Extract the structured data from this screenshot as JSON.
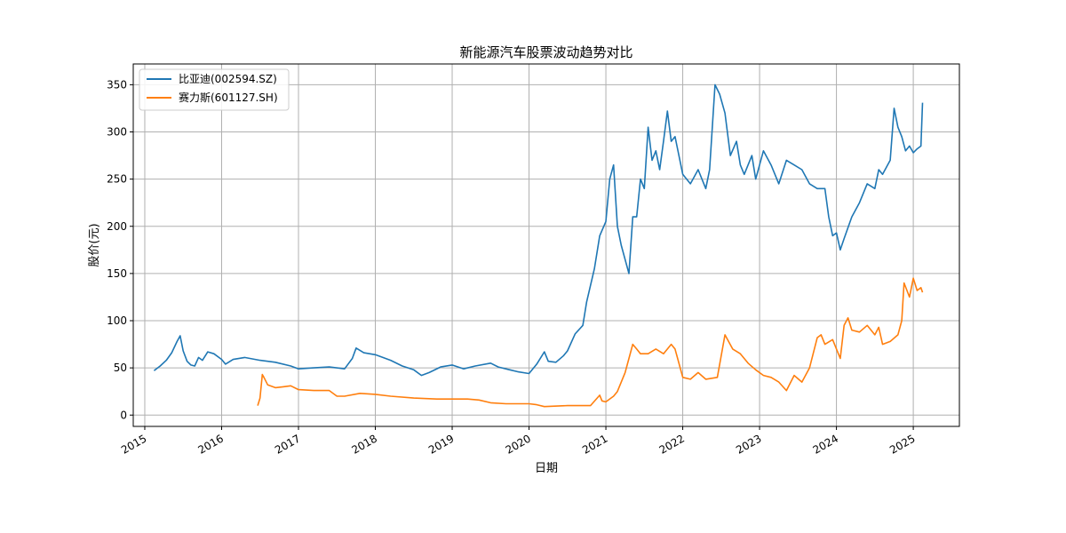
{
  "chart_data": {
    "type": "line",
    "title": "新能源汽车股票波动趋势对比",
    "xlabel": "日期",
    "ylabel": "股价(元)",
    "xlim": [
      2014.85,
      2025.6
    ],
    "ylim": [
      -12,
      372
    ],
    "grid": true,
    "legend_position": "top-left",
    "x_ticks": [
      {
        "value": 2015,
        "label": "2015"
      },
      {
        "value": 2016,
        "label": "2016"
      },
      {
        "value": 2017,
        "label": "2017"
      },
      {
        "value": 2018,
        "label": "2018"
      },
      {
        "value": 2019,
        "label": "2019"
      },
      {
        "value": 2020,
        "label": "2020"
      },
      {
        "value": 2021,
        "label": "2021"
      },
      {
        "value": 2022,
        "label": "2022"
      },
      {
        "value": 2023,
        "label": "2023"
      },
      {
        "value": 2024,
        "label": "2024"
      },
      {
        "value": 2025,
        "label": "2025"
      }
    ],
    "y_ticks": [
      {
        "value": 0,
        "label": "0"
      },
      {
        "value": 50,
        "label": "50"
      },
      {
        "value": 100,
        "label": "100"
      },
      {
        "value": 150,
        "label": "150"
      },
      {
        "value": 200,
        "label": "200"
      },
      {
        "value": 250,
        "label": "250"
      },
      {
        "value": 300,
        "label": "300"
      },
      {
        "value": 350,
        "label": "350"
      }
    ],
    "series": [
      {
        "name": "比亚迪(002594.SZ)",
        "color": "#1f77b4",
        "x": [
          2015.12,
          2015.2,
          2015.28,
          2015.35,
          2015.42,
          2015.46,
          2015.5,
          2015.55,
          2015.6,
          2015.65,
          2015.7,
          2015.75,
          2015.82,
          2015.9,
          2016.0,
          2016.05,
          2016.15,
          2016.3,
          2016.5,
          2016.7,
          2016.9,
          2017.0,
          2017.2,
          2017.4,
          2017.6,
          2017.7,
          2017.75,
          2017.85,
          2018.0,
          2018.2,
          2018.35,
          2018.5,
          2018.6,
          2018.7,
          2018.85,
          2019.0,
          2019.15,
          2019.3,
          2019.5,
          2019.6,
          2019.75,
          2019.85,
          2020.0,
          2020.1,
          2020.2,
          2020.25,
          2020.35,
          2020.45,
          2020.5,
          2020.6,
          2020.7,
          2020.75,
          2020.85,
          2020.92,
          2021.0,
          2021.05,
          2021.1,
          2021.15,
          2021.2,
          2021.3,
          2021.35,
          2021.4,
          2021.45,
          2021.5,
          2021.55,
          2021.6,
          2021.65,
          2021.7,
          2021.75,
          2021.8,
          2021.85,
          2021.9,
          2022.0,
          2022.1,
          2022.2,
          2022.3,
          2022.35,
          2022.42,
          2022.48,
          2022.55,
          2022.62,
          2022.7,
          2022.75,
          2022.8,
          2022.9,
          2022.95,
          2023.05,
          2023.15,
          2023.25,
          2023.35,
          2023.45,
          2023.55,
          2023.65,
          2023.75,
          2023.85,
          2023.9,
          2023.95,
          2024.0,
          2024.05,
          2024.1,
          2024.2,
          2024.3,
          2024.4,
          2024.5,
          2024.55,
          2024.6,
          2024.7,
          2024.75,
          2024.8,
          2024.85,
          2024.9,
          2024.95,
          2025.0,
          2025.05,
          2025.1,
          2025.12
        ],
        "y": [
          47,
          52,
          58,
          66,
          78,
          84,
          68,
          57,
          53,
          52,
          61,
          58,
          67,
          65,
          59,
          54,
          59,
          61,
          58,
          56,
          52,
          49,
          50,
          51,
          49,
          60,
          71,
          66,
          64,
          58,
          52,
          48,
          42,
          45,
          51,
          53,
          49,
          52,
          55,
          51,
          48,
          46,
          44,
          54,
          67,
          57,
          56,
          63,
          68,
          86,
          95,
          120,
          155,
          190,
          205,
          250,
          265,
          200,
          180,
          150,
          210,
          210,
          250,
          240,
          305,
          270,
          280,
          260,
          290,
          322,
          290,
          295,
          255,
          245,
          260,
          240,
          260,
          350,
          340,
          320,
          275,
          290,
          265,
          255,
          275,
          250,
          280,
          265,
          245,
          270,
          265,
          260,
          245,
          240,
          240,
          210,
          190,
          193,
          175,
          187,
          210,
          225,
          245,
          240,
          260,
          255,
          270,
          325,
          305,
          295,
          280,
          285,
          278,
          282,
          285,
          331
        ]
      },
      {
        "name": "赛力斯(601127.SH)",
        "color": "#ff7f0e",
        "x": [
          2016.47,
          2016.5,
          2016.53,
          2016.55,
          2016.6,
          2016.7,
          2016.8,
          2016.9,
          2017.0,
          2017.2,
          2017.4,
          2017.5,
          2017.6,
          2017.8,
          2018.0,
          2018.2,
          2018.5,
          2018.8,
          2019.0,
          2019.2,
          2019.35,
          2019.5,
          2019.7,
          2019.9,
          2020.0,
          2020.1,
          2020.2,
          2020.5,
          2020.8,
          2020.92,
          2020.95,
          2021.0,
          2021.1,
          2021.15,
          2021.25,
          2021.3,
          2021.35,
          2021.4,
          2021.45,
          2021.55,
          2021.65,
          2021.75,
          2021.85,
          2021.9,
          2022.0,
          2022.1,
          2022.2,
          2022.3,
          2022.45,
          2022.55,
          2022.65,
          2022.75,
          2022.85,
          2022.95,
          2023.05,
          2023.15,
          2023.25,
          2023.35,
          2023.45,
          2023.55,
          2023.65,
          2023.75,
          2023.8,
          2023.85,
          2023.95,
          2024.05,
          2024.1,
          2024.15,
          2024.2,
          2024.3,
          2024.4,
          2024.5,
          2024.55,
          2024.6,
          2024.7,
          2024.8,
          2024.85,
          2024.88,
          2024.95,
          2025.0,
          2025.05,
          2025.1,
          2025.12
        ],
        "y": [
          10,
          18,
          43,
          40,
          32,
          29,
          30,
          31,
          27,
          26,
          26,
          20,
          20,
          23,
          22,
          20,
          18,
          17,
          17,
          17,
          16,
          13,
          12,
          12,
          12,
          11,
          9,
          10,
          10,
          21,
          15,
          14,
          20,
          25,
          45,
          60,
          75,
          70,
          65,
          65,
          70,
          65,
          75,
          70,
          40,
          38,
          45,
          38,
          40,
          85,
          70,
          65,
          55,
          48,
          42,
          40,
          35,
          26,
          42,
          35,
          50,
          82,
          85,
          75,
          80,
          60,
          95,
          103,
          90,
          88,
          95,
          85,
          93,
          75,
          78,
          85,
          100,
          140,
          125,
          145,
          132,
          135,
          130
        ]
      }
    ]
  }
}
